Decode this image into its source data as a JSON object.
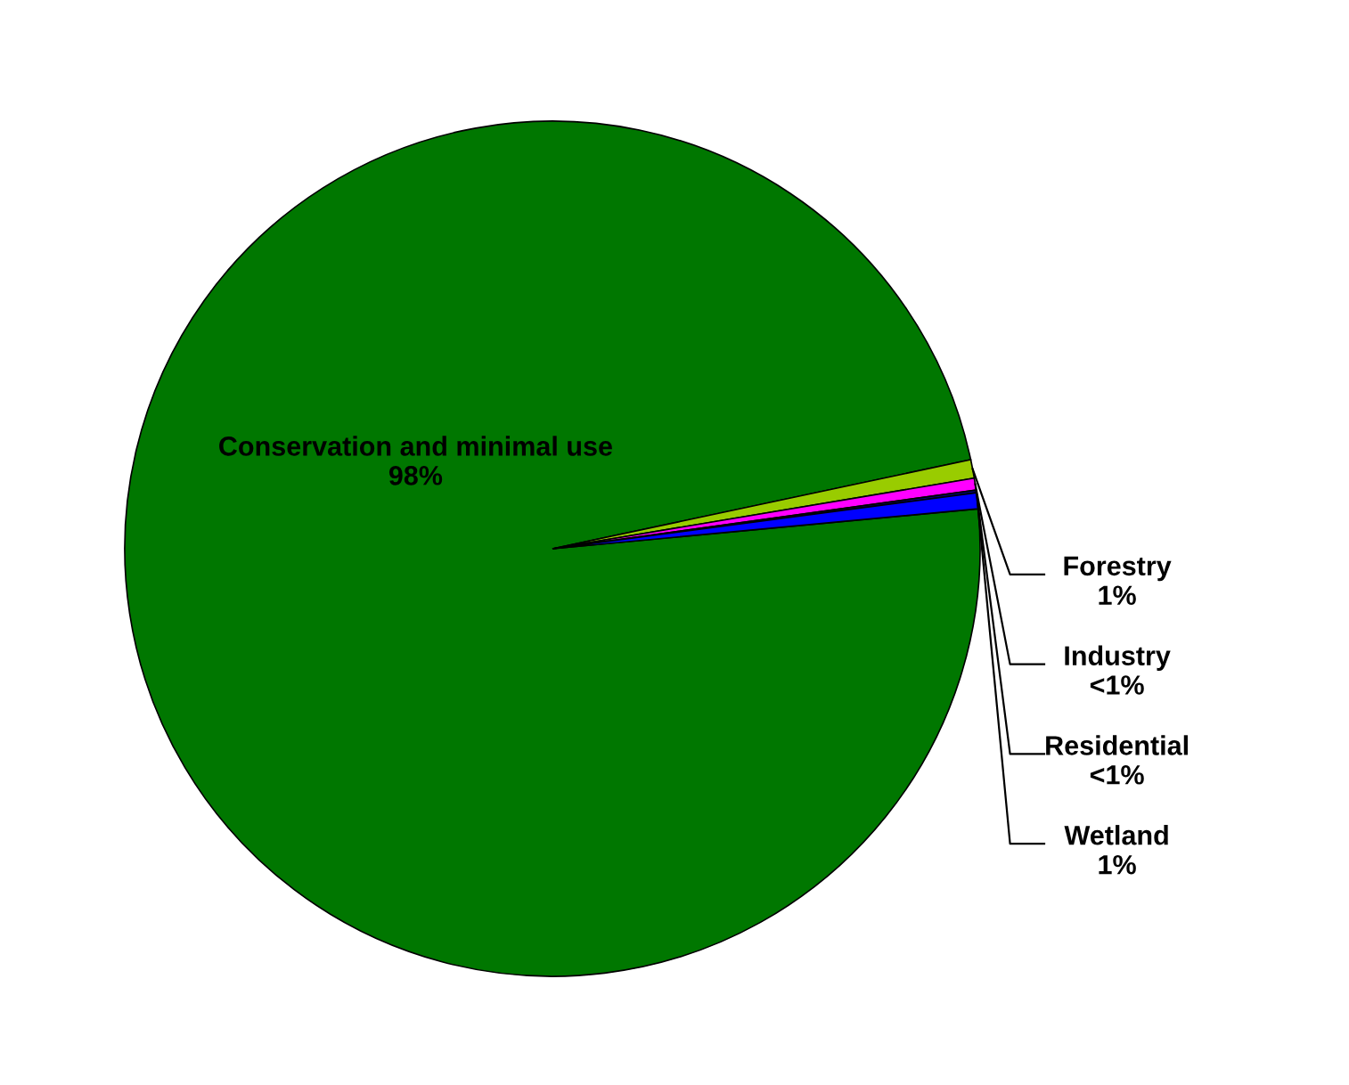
{
  "chart_data": {
    "type": "pie",
    "categories": [
      "Conservation and minimal use",
      "Forestry",
      "Industry",
      "Residential",
      "Wetland"
    ],
    "values": [
      98.15,
      0.7,
      0.45,
      0.1,
      0.6
    ],
    "colors": [
      "#007700",
      "#99cc00",
      "#ff00ff",
      "#000080",
      "#0000ff"
    ],
    "value_labels": [
      "98%",
      "1%",
      "<1%",
      "<1%",
      "1%"
    ],
    "legend": false
  }
}
